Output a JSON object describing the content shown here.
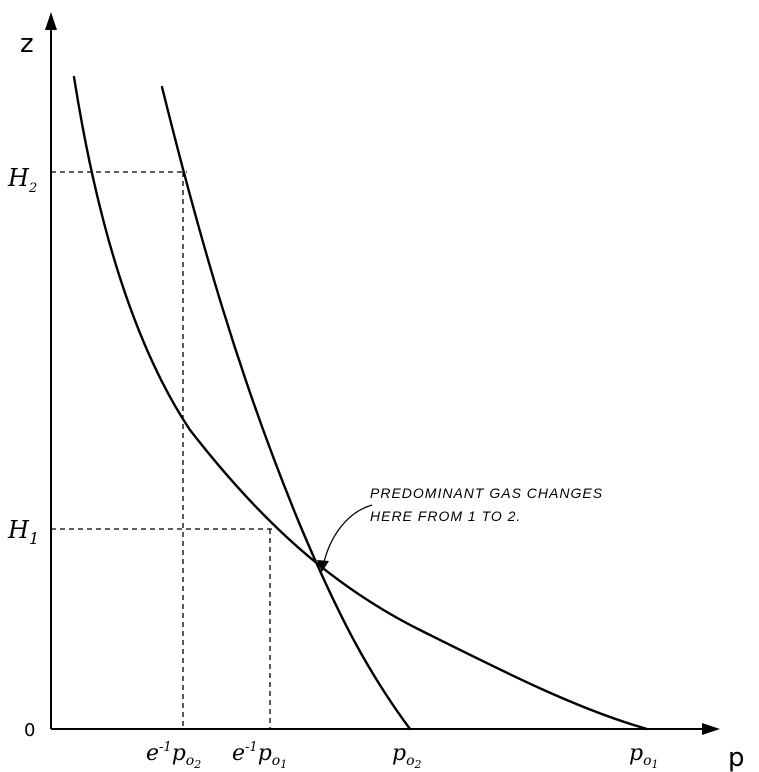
{
  "axes": {
    "z_label": "z",
    "p_label": "p",
    "origin_label": "0"
  },
  "y_ticks": {
    "h2": {
      "base": "H",
      "sub": "2"
    },
    "h1": {
      "base": "H",
      "sub": "1"
    }
  },
  "x_ticks": {
    "e_p02": {
      "pre": "e",
      "exp": "-1",
      "base": "p",
      "sub": "o",
      "subsub": "2"
    },
    "e_p01": {
      "pre": "e",
      "exp": "-1",
      "base": "p",
      "sub": "o",
      "subsub": "1"
    },
    "p02": {
      "base": "p",
      "sub": "o",
      "subsub": "2"
    },
    "p01": {
      "base": "p",
      "sub": "o",
      "subsub": "1"
    }
  },
  "annotation": {
    "line1": "PREDOMINANT  GAS  CHANGES",
    "line2": "HERE  FROM  1  TO  2."
  }
}
